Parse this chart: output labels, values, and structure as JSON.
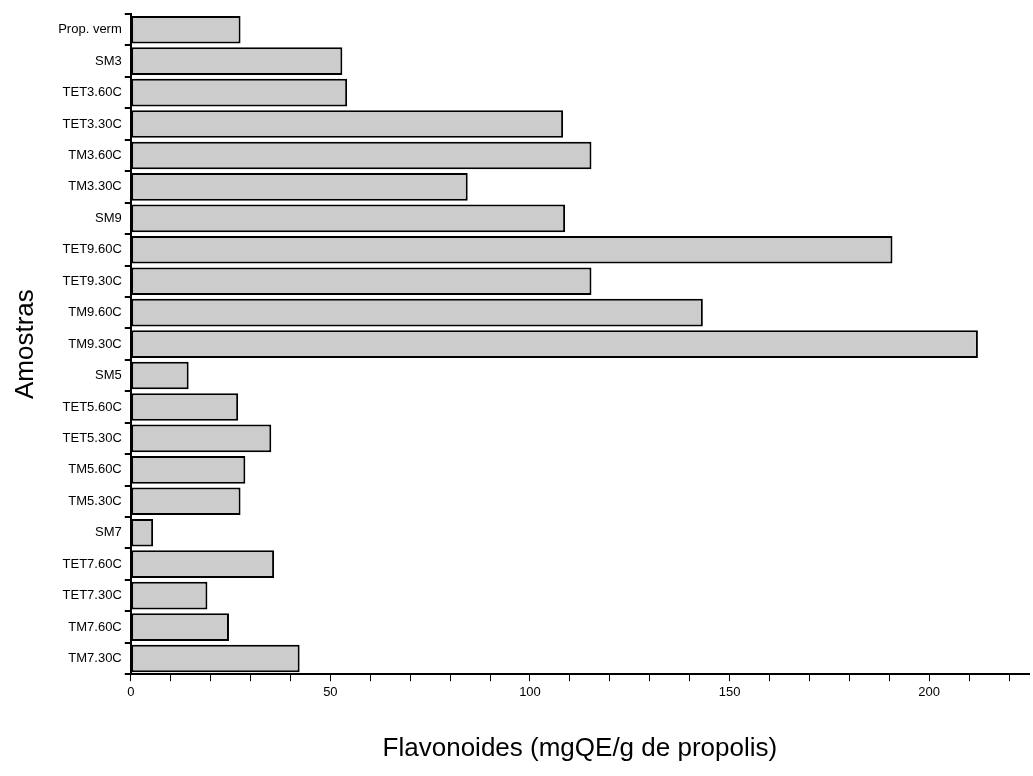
{
  "chart_data": {
    "type": "bar",
    "orientation": "horizontal",
    "xlabel": "Flavonoides (mgQE/g de propolis)",
    "ylabel": "Amostras",
    "categories": [
      "Prop. verm",
      "SM3",
      "TET3.60C",
      "TET3.30C",
      "TM3.60C",
      "TM3.30C",
      "SM9",
      "TET9.60C",
      "TET9.30C",
      "TM9.60C",
      "TM9.30C",
      "SM5",
      "TET5.60C",
      "TET5.30C",
      "TM5.60C",
      "TM5.30C",
      "SM7",
      "TET7.60C",
      "TET7.30C",
      "TM7.60C",
      "TM7.30C"
    ],
    "values": [
      27.5,
      53,
      54.2,
      108.3,
      115.4,
      84.4,
      108.8,
      190.8,
      115.4,
      143.3,
      212.2,
      14.5,
      26.9,
      35.2,
      28.7,
      27.5,
      5.6,
      35.9,
      19.2,
      24.6,
      42.3
    ],
    "color": "#cccccc",
    "xlim": [
      0,
      225
    ],
    "xticks": [
      0,
      {
        "value": 10,
        "label": null
      },
      {
        "value": 20,
        "label": null
      },
      {
        "value": 30,
        "label": null
      },
      {
        "value": 40,
        "label": null
      },
      50,
      {
        "value": 60,
        "label": null
      },
      {
        "value": 70,
        "label": null
      },
      {
        "value": 80,
        "label": null
      },
      {
        "value": 90,
        "label": null
      },
      100,
      {
        "value": 110,
        "label": null
      },
      {
        "value": 120,
        "label": null
      },
      {
        "value": 130,
        "label": null
      },
      {
        "value": 140,
        "label": null
      },
      150,
      {
        "value": 160,
        "label": null
      },
      {
        "value": 170,
        "label": null
      },
      {
        "value": 180,
        "label": null
      },
      {
        "value": 190,
        "label": null
      },
      200,
      {
        "value": 210,
        "label": null
      },
      {
        "value": 220,
        "label": null
      }
    ],
    "grid": false,
    "legend": false
  }
}
